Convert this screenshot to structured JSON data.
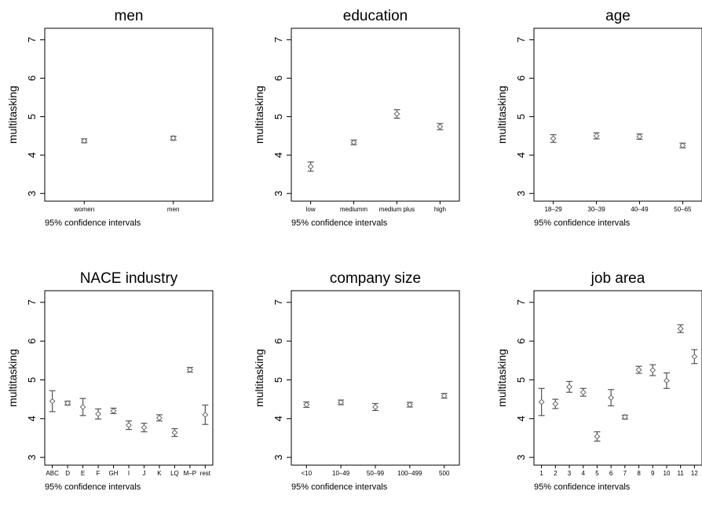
{
  "chart_data": [
    {
      "type": "scatter",
      "title": "men",
      "ylabel": "multitasking",
      "note": "95% confidence intervals",
      "ylim": [
        2.8,
        7.3
      ],
      "yticks": [
        3,
        4,
        5,
        6,
        7
      ],
      "categories": [
        "women",
        "men"
      ],
      "points": [
        {
          "category": "women",
          "y": 4.37,
          "lo": 4.32,
          "hi": 4.42
        },
        {
          "category": "men",
          "y": 4.44,
          "lo": 4.39,
          "hi": 4.49
        }
      ]
    },
    {
      "type": "scatter",
      "title": "education",
      "ylabel": "multitasking",
      "note": "95% confidence intervals",
      "ylim": [
        2.8,
        7.3
      ],
      "yticks": [
        3,
        4,
        5,
        6,
        7
      ],
      "categories": [
        "low",
        "mediumm",
        "medium plus",
        "high"
      ],
      "points": [
        {
          "category": "low",
          "y": 3.7,
          "lo": 3.58,
          "hi": 3.82
        },
        {
          "category": "mediumm",
          "y": 4.33,
          "lo": 4.27,
          "hi": 4.39
        },
        {
          "category": "medium plus",
          "y": 5.07,
          "lo": 4.96,
          "hi": 5.18
        },
        {
          "category": "high",
          "y": 4.74,
          "lo": 4.66,
          "hi": 4.82
        }
      ]
    },
    {
      "type": "scatter",
      "title": "age",
      "ylabel": "multitasking",
      "note": "95% confidence intervals",
      "ylim": [
        2.8,
        7.3
      ],
      "yticks": [
        3,
        4,
        5,
        6,
        7
      ],
      "categories": [
        "18–29",
        "30–39",
        "40–49",
        "50–65"
      ],
      "points": [
        {
          "category": "18–29",
          "y": 4.43,
          "lo": 4.33,
          "hi": 4.53
        },
        {
          "category": "30–39",
          "y": 4.5,
          "lo": 4.42,
          "hi": 4.58
        },
        {
          "category": "40–49",
          "y": 4.48,
          "lo": 4.41,
          "hi": 4.55
        },
        {
          "category": "50–65",
          "y": 4.25,
          "lo": 4.19,
          "hi": 4.31
        }
      ]
    },
    {
      "type": "scatter",
      "title": "NACE industry",
      "ylabel": "multitasking",
      "note": "95% confidence intervals",
      "ylim": [
        2.8,
        7.3
      ],
      "yticks": [
        3,
        4,
        5,
        6,
        7
      ],
      "categories": [
        "ABC",
        "D",
        "E",
        "F",
        "GH",
        "I",
        "J",
        "K",
        "LQ",
        "M–P",
        "rest"
      ],
      "points": [
        {
          "category": "ABC",
          "y": 4.45,
          "lo": 4.18,
          "hi": 4.72
        },
        {
          "category": "D",
          "y": 4.4,
          "lo": 4.35,
          "hi": 4.45
        },
        {
          "category": "E",
          "y": 4.3,
          "lo": 4.08,
          "hi": 4.52
        },
        {
          "category": "F",
          "y": 4.12,
          "lo": 3.99,
          "hi": 4.25
        },
        {
          "category": "GH",
          "y": 4.2,
          "lo": 4.13,
          "hi": 4.27
        },
        {
          "category": "I",
          "y": 3.83,
          "lo": 3.72,
          "hi": 3.94
        },
        {
          "category": "J",
          "y": 3.77,
          "lo": 3.66,
          "hi": 3.88
        },
        {
          "category": "K",
          "y": 4.02,
          "lo": 3.94,
          "hi": 4.1
        },
        {
          "category": "LQ",
          "y": 3.64,
          "lo": 3.54,
          "hi": 3.74
        },
        {
          "category": "M–P",
          "y": 5.26,
          "lo": 5.2,
          "hi": 5.32
        },
        {
          "category": "rest",
          "y": 4.1,
          "lo": 3.85,
          "hi": 4.35
        }
      ]
    },
    {
      "type": "scatter",
      "title": "company size",
      "ylabel": "multitasking",
      "note": "95% confidence intervals",
      "ylim": [
        2.8,
        7.3
      ],
      "yticks": [
        3,
        4,
        5,
        6,
        7
      ],
      "categories": [
        "<10",
        "10–49",
        "50–99",
        "100–499",
        "500"
      ],
      "points": [
        {
          "category": "<10",
          "y": 4.36,
          "lo": 4.29,
          "hi": 4.43
        },
        {
          "category": "10–49",
          "y": 4.42,
          "lo": 4.36,
          "hi": 4.48
        },
        {
          "category": "50–99",
          "y": 4.3,
          "lo": 4.21,
          "hi": 4.39
        },
        {
          "category": "100–499",
          "y": 4.36,
          "lo": 4.3,
          "hi": 4.42
        },
        {
          "category": "500",
          "y": 4.59,
          "lo": 4.53,
          "hi": 4.65
        }
      ]
    },
    {
      "type": "scatter",
      "title": "job area",
      "ylabel": "multitasking",
      "note": "95% confidence intervals",
      "ylim": [
        2.8,
        7.3
      ],
      "yticks": [
        3,
        4,
        5,
        6,
        7
      ],
      "categories": [
        "1",
        "2",
        "3",
        "4",
        "5",
        "6",
        "7",
        "8",
        "9",
        "10",
        "11",
        "12"
      ],
      "points": [
        {
          "category": "1",
          "y": 4.43,
          "lo": 4.08,
          "hi": 4.78
        },
        {
          "category": "2",
          "y": 4.38,
          "lo": 4.26,
          "hi": 4.5
        },
        {
          "category": "3",
          "y": 4.82,
          "lo": 4.68,
          "hi": 4.96
        },
        {
          "category": "4",
          "y": 4.68,
          "lo": 4.58,
          "hi": 4.78
        },
        {
          "category": "5",
          "y": 3.54,
          "lo": 3.42,
          "hi": 3.66
        },
        {
          "category": "6",
          "y": 4.54,
          "lo": 4.33,
          "hi": 4.75
        },
        {
          "category": "7",
          "y": 4.04,
          "lo": 3.99,
          "hi": 4.09
        },
        {
          "category": "8",
          "y": 5.26,
          "lo": 5.17,
          "hi": 5.35
        },
        {
          "category": "9",
          "y": 5.25,
          "lo": 5.11,
          "hi": 5.39
        },
        {
          "category": "10",
          "y": 4.98,
          "lo": 4.78,
          "hi": 5.18
        },
        {
          "category": "11",
          "y": 6.32,
          "lo": 6.22,
          "hi": 6.42
        },
        {
          "category": "12",
          "y": 5.6,
          "lo": 5.42,
          "hi": 5.78
        }
      ]
    }
  ]
}
